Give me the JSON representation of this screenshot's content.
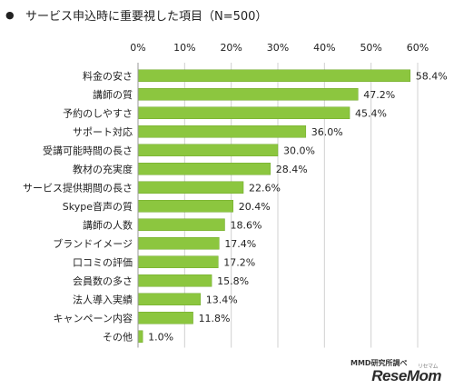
{
  "title_bullet": "●",
  "title": "サービス申込時に重要視した項目（N=500）",
  "source": "MMD研究所調べ",
  "logo": "ReseMom",
  "logo_kana": "リセマム",
  "chart_data": {
    "type": "bar",
    "orientation": "horizontal",
    "title": "サービス申込時に重要視した項目（N=500）",
    "categories": [
      "料金の安さ",
      "講師の質",
      "予約のしやすさ",
      "サポート対応",
      "受講可能時間の長さ",
      "教材の充実度",
      "サービス提供期間の長さ",
      "Skype音声の質",
      "講師の人数",
      "ブランドイメージ",
      "口コミの評価",
      "会員数の多さ",
      "法人導入実績",
      "キャンペーン内容",
      "その他"
    ],
    "values": [
      58.4,
      47.2,
      45.4,
      36.0,
      30.0,
      28.4,
      22.6,
      20.4,
      18.6,
      17.4,
      17.2,
      15.8,
      13.4,
      11.8,
      1.0
    ],
    "value_labels": [
      "58.4%",
      "47.2%",
      "45.4%",
      "36.0%",
      "30.0%",
      "28.4%",
      "22.6%",
      "20.4%",
      "18.6%",
      "17.4%",
      "17.2%",
      "15.8%",
      "13.4%",
      "11.8%",
      "1.0%"
    ],
    "xlim": [
      0,
      60
    ],
    "xticks": [
      0,
      10,
      20,
      30,
      40,
      50,
      60
    ],
    "xtick_labels": [
      "0%",
      "10%",
      "20%",
      "30%",
      "40%",
      "50%",
      "60%"
    ],
    "grid": true,
    "bar_color": "#8cc63f",
    "bar_border_color": "#6fa82a",
    "grid_color": "#d0d0d0"
  }
}
